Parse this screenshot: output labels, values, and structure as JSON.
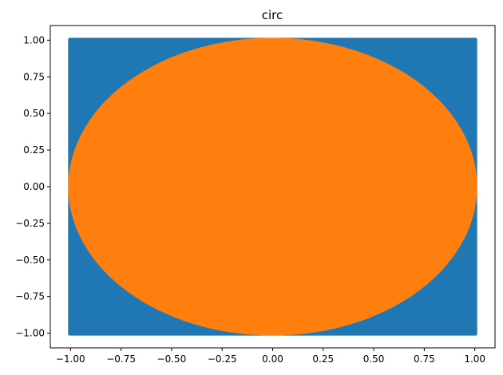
{
  "chart_data": {
    "type": "scatter",
    "title": "circ",
    "xlabel": "",
    "ylabel": "",
    "xlim": [
      -1.1,
      1.1
    ],
    "ylim": [
      -1.1,
      1.1
    ],
    "grid": false,
    "x_ticks": [
      -1.0,
      -0.75,
      -0.5,
      -0.25,
      0.0,
      0.25,
      0.5,
      0.75,
      1.0
    ],
    "x_tick_labels": [
      "−1.00",
      "−0.75",
      "−0.50",
      "−0.25",
      "0.00",
      "0.25",
      "0.50",
      "0.75",
      "1.00"
    ],
    "y_ticks": [
      -1.0,
      -0.75,
      -0.5,
      -0.25,
      0.0,
      0.25,
      0.5,
      0.75,
      1.0
    ],
    "y_tick_labels": [
      "−1.00",
      "−0.75",
      "−0.50",
      "−0.25",
      "0.00",
      "0.25",
      "0.50",
      "0.75",
      "1.00"
    ],
    "series": [
      {
        "color": "#1f77b4",
        "shape": "square",
        "description_of_extent": "points uniformly filling x in [-1, 1], y in [-1, 1]",
        "extent": {
          "x": [
            -1,
            1
          ],
          "y": [
            -1,
            1
          ]
        }
      },
      {
        "color": "#ff7f0e",
        "shape": "circle",
        "description_of_extent": "points filling the unit disk x^2 + y^2 <= 1",
        "radius": 1
      }
    ]
  }
}
